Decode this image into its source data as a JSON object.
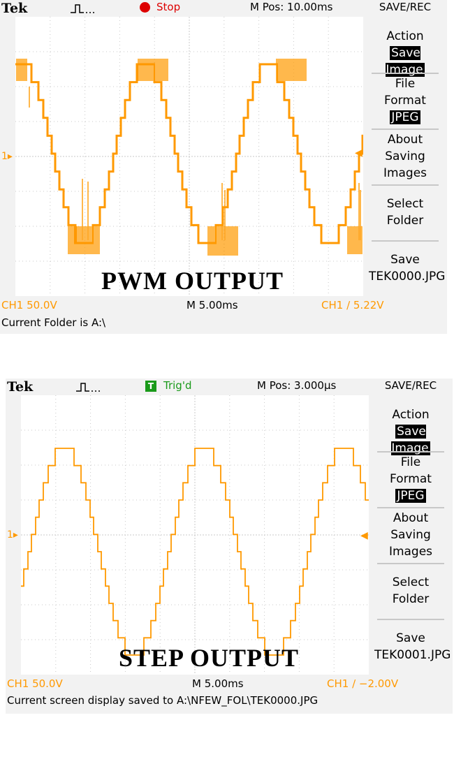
{
  "scopes": [
    {
      "brand": "Tek",
      "trigger_icon": "square-pulse-icon",
      "status_text": "Stop",
      "status_color": "#dd0000",
      "mpos": "M Pos: 10.00ms",
      "menu_title": "SAVE/REC",
      "menu": {
        "action_label": "Action",
        "action_value": "Save Image",
        "format_label_1": "File",
        "format_label_2": "Format",
        "format_value": "JPEG",
        "about_1": "About",
        "about_2": "Saving",
        "about_3": "Images",
        "select_1": "Select",
        "select_2": "Folder",
        "save_label": "Save",
        "save_file": "TEK0000.JPG"
      },
      "ch_marker": "1",
      "ch_scale": "CH1  50.0V",
      "timebase": "M 5.00ms",
      "trig_info": "CH1 ∕ 5.22V",
      "message": "Current Folder is A:\\",
      "caption": "PWM OUTPUT",
      "trace_color": "#ff9900"
    },
    {
      "brand": "Tek",
      "trigger_icon": "square-pulse-icon",
      "status_badge": "T",
      "status_text": "Trig'd",
      "status_color": "#1a9a1a",
      "mpos": "M Pos: 3.000μs",
      "menu_title": "SAVE/REC",
      "menu": {
        "action_label": "Action",
        "action_value": "Save Image",
        "format_label_1": "File",
        "format_label_2": "Format",
        "format_value": "JPEG",
        "about_1": "About",
        "about_2": "Saving",
        "about_3": "Images",
        "select_1": "Select",
        "select_2": "Folder",
        "save_label": "Save",
        "save_file": "TEK0001.JPG"
      },
      "ch_marker": "1",
      "ch_scale": "CH1  50.0V",
      "timebase": "M 5.00ms",
      "trig_info": "CH1 ∕ −2.00V",
      "message": "Current screen display saved to A:\\NFEW_FOL\\TEK0000.JPG",
      "caption": "STEP OUTPUT",
      "trace_color": "#ff9900"
    }
  ]
}
